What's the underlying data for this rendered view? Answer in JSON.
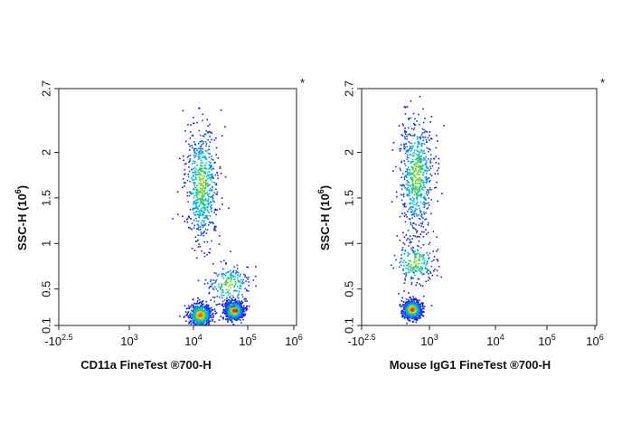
{
  "chart_data": [
    {
      "type": "scatter",
      "panel": "left",
      "title": "",
      "xlabel": "CD11a  FineTest ®700-H",
      "ylabel": "SSC-H (10",
      "ylabel_exp": "6",
      "ylabel_close": ")",
      "x_scale": "biexponential",
      "xlim": [
        -316,
        1000000
      ],
      "ylim": [
        0.1,
        2.7
      ],
      "x_ticks": [
        {
          "base": "-10",
          "exp": "2.5",
          "value": -316
        },
        {
          "base": "10",
          "exp": "3",
          "value": 1000
        },
        {
          "base": "10",
          "exp": "4",
          "value": 10000
        },
        {
          "base": "10",
          "exp": "5",
          "value": 100000
        },
        {
          "base": "10",
          "exp": "6",
          "value": 1000000
        }
      ],
      "y_ticks": [
        "0.1",
        "0.5",
        "1",
        "1.5",
        "2",
        "2.7"
      ],
      "y_tick_values": [
        0.1,
        0.5,
        1,
        1.5,
        2,
        2.7
      ],
      "corner_mark": "*",
      "populations": [
        {
          "x": 14000,
          "y": 1.65,
          "density": "medium"
        },
        {
          "x": 13000,
          "y": 0.22,
          "density": "high"
        },
        {
          "x": 55000,
          "y": 0.27,
          "density": "highest"
        },
        {
          "x": 45000,
          "y": 0.55,
          "density": "low"
        }
      ]
    },
    {
      "type": "scatter",
      "panel": "right",
      "title": "",
      "xlabel": "Mouse IgG1  FineTest ®700-H",
      "ylabel": "SSC-H (10",
      "ylabel_exp": "6",
      "ylabel_close": ")",
      "x_scale": "biexponential",
      "xlim": [
        -316,
        1000000
      ],
      "ylim": [
        0.1,
        2.7
      ],
      "x_ticks": [
        {
          "base": "-10",
          "exp": "2.5",
          "value": -316
        },
        {
          "base": "10",
          "exp": "3",
          "value": 1000
        },
        {
          "base": "10",
          "exp": "4",
          "value": 10000
        },
        {
          "base": "10",
          "exp": "5",
          "value": 100000
        },
        {
          "base": "10",
          "exp": "6",
          "value": 1000000
        }
      ],
      "y_ticks": [
        "0.1",
        "0.5",
        "1",
        "1.5",
        "2",
        "2.7"
      ],
      "y_tick_values": [
        0.1,
        0.5,
        1,
        1.5,
        2,
        2.7
      ],
      "corner_mark": "*",
      "populations": [
        {
          "x": 300,
          "y": 1.75,
          "density": "medium"
        },
        {
          "x": 200,
          "y": 0.28,
          "density": "highest"
        },
        {
          "x": 250,
          "y": 0.8,
          "density": "low"
        }
      ]
    }
  ]
}
